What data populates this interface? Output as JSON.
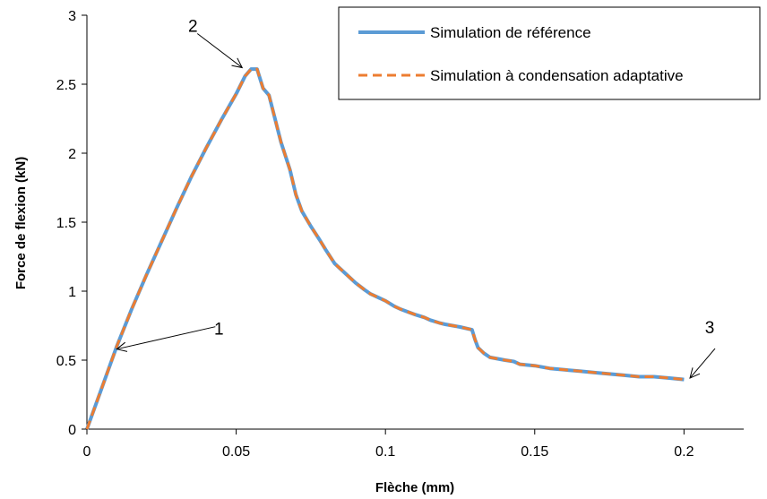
{
  "chart_data": {
    "type": "line",
    "title": "",
    "xlabel": "Flèche (mm)",
    "ylabel": "Force de flexion (kN)",
    "xlim": [
      0,
      0.22
    ],
    "ylim": [
      0,
      3
    ],
    "x_ticks": [
      0,
      0.05,
      0.1,
      0.15,
      0.2
    ],
    "x_tick_labels": [
      "0",
      "0.05",
      "0.1",
      "0.15",
      "0.2"
    ],
    "y_ticks": [
      0,
      0.5,
      1,
      1.5,
      2,
      2.5,
      3
    ],
    "y_tick_labels": [
      "0",
      "0.5",
      "1",
      "1.5",
      "2",
      "2.5",
      "3"
    ],
    "grid": false,
    "legend_position": "top-right",
    "series": [
      {
        "name": "Simulation de référence",
        "color": "#5B9BD5",
        "style": "solid",
        "points": [
          [
            0,
            0
          ],
          [
            0.005,
            0.3
          ],
          [
            0.01,
            0.6
          ],
          [
            0.015,
            0.87
          ],
          [
            0.02,
            1.12
          ],
          [
            0.025,
            1.36
          ],
          [
            0.03,
            1.6
          ],
          [
            0.035,
            1.83
          ],
          [
            0.04,
            2.04
          ],
          [
            0.045,
            2.24
          ],
          [
            0.05,
            2.43
          ],
          [
            0.053,
            2.56
          ],
          [
            0.055,
            2.61
          ],
          [
            0.057,
            2.61
          ],
          [
            0.059,
            2.47
          ],
          [
            0.061,
            2.42
          ],
          [
            0.063,
            2.25
          ],
          [
            0.065,
            2.08
          ],
          [
            0.068,
            1.88
          ],
          [
            0.07,
            1.7
          ],
          [
            0.072,
            1.58
          ],
          [
            0.075,
            1.47
          ],
          [
            0.078,
            1.37
          ],
          [
            0.08,
            1.3
          ],
          [
            0.083,
            1.2
          ],
          [
            0.085,
            1.16
          ],
          [
            0.088,
            1.1
          ],
          [
            0.09,
            1.06
          ],
          [
            0.093,
            1.01
          ],
          [
            0.095,
            0.98
          ],
          [
            0.098,
            0.95
          ],
          [
            0.1,
            0.93
          ],
          [
            0.103,
            0.89
          ],
          [
            0.105,
            0.87
          ],
          [
            0.11,
            0.83
          ],
          [
            0.113,
            0.81
          ],
          [
            0.115,
            0.79
          ],
          [
            0.118,
            0.77
          ],
          [
            0.12,
            0.76
          ],
          [
            0.125,
            0.74
          ],
          [
            0.129,
            0.72
          ],
          [
            0.13,
            0.65
          ],
          [
            0.131,
            0.59
          ],
          [
            0.133,
            0.55
          ],
          [
            0.135,
            0.52
          ],
          [
            0.14,
            0.5
          ],
          [
            0.143,
            0.49
          ],
          [
            0.145,
            0.47
          ],
          [
            0.15,
            0.46
          ],
          [
            0.155,
            0.44
          ],
          [
            0.16,
            0.43
          ],
          [
            0.165,
            0.42
          ],
          [
            0.17,
            0.41
          ],
          [
            0.175,
            0.4
          ],
          [
            0.18,
            0.39
          ],
          [
            0.185,
            0.38
          ],
          [
            0.19,
            0.38
          ],
          [
            0.195,
            0.37
          ],
          [
            0.2,
            0.36
          ]
        ]
      },
      {
        "name": "Simulation à condensation adaptative",
        "color": "#ED7D31",
        "style": "dashed",
        "points": [
          [
            0,
            0
          ],
          [
            0.005,
            0.3
          ],
          [
            0.01,
            0.6
          ],
          [
            0.015,
            0.87
          ],
          [
            0.02,
            1.12
          ],
          [
            0.025,
            1.36
          ],
          [
            0.03,
            1.6
          ],
          [
            0.035,
            1.83
          ],
          [
            0.04,
            2.04
          ],
          [
            0.045,
            2.24
          ],
          [
            0.05,
            2.43
          ],
          [
            0.053,
            2.56
          ],
          [
            0.055,
            2.61
          ],
          [
            0.057,
            2.61
          ],
          [
            0.059,
            2.47
          ],
          [
            0.061,
            2.42
          ],
          [
            0.063,
            2.25
          ],
          [
            0.065,
            2.08
          ],
          [
            0.068,
            1.88
          ],
          [
            0.07,
            1.7
          ],
          [
            0.072,
            1.58
          ],
          [
            0.075,
            1.47
          ],
          [
            0.078,
            1.37
          ],
          [
            0.08,
            1.3
          ],
          [
            0.083,
            1.2
          ],
          [
            0.085,
            1.16
          ],
          [
            0.088,
            1.1
          ],
          [
            0.09,
            1.06
          ],
          [
            0.093,
            1.01
          ],
          [
            0.095,
            0.98
          ],
          [
            0.098,
            0.95
          ],
          [
            0.1,
            0.93
          ],
          [
            0.103,
            0.89
          ],
          [
            0.105,
            0.87
          ],
          [
            0.11,
            0.83
          ],
          [
            0.113,
            0.81
          ],
          [
            0.115,
            0.79
          ],
          [
            0.118,
            0.77
          ],
          [
            0.12,
            0.76
          ],
          [
            0.125,
            0.74
          ],
          [
            0.129,
            0.72
          ],
          [
            0.13,
            0.65
          ],
          [
            0.131,
            0.59
          ],
          [
            0.133,
            0.55
          ],
          [
            0.135,
            0.52
          ],
          [
            0.14,
            0.5
          ],
          [
            0.143,
            0.49
          ],
          [
            0.145,
            0.47
          ],
          [
            0.15,
            0.46
          ],
          [
            0.155,
            0.44
          ],
          [
            0.16,
            0.43
          ],
          [
            0.165,
            0.42
          ],
          [
            0.17,
            0.41
          ],
          [
            0.175,
            0.4
          ],
          [
            0.18,
            0.39
          ],
          [
            0.185,
            0.38
          ],
          [
            0.19,
            0.38
          ],
          [
            0.195,
            0.37
          ],
          [
            0.2,
            0.36
          ]
        ]
      }
    ],
    "annotations": [
      {
        "label": "1",
        "x": 0.01,
        "y": 0.58
      },
      {
        "label": "2",
        "x": 0.052,
        "y": 2.62
      },
      {
        "label": "3",
        "x": 0.202,
        "y": 0.37
      }
    ]
  }
}
